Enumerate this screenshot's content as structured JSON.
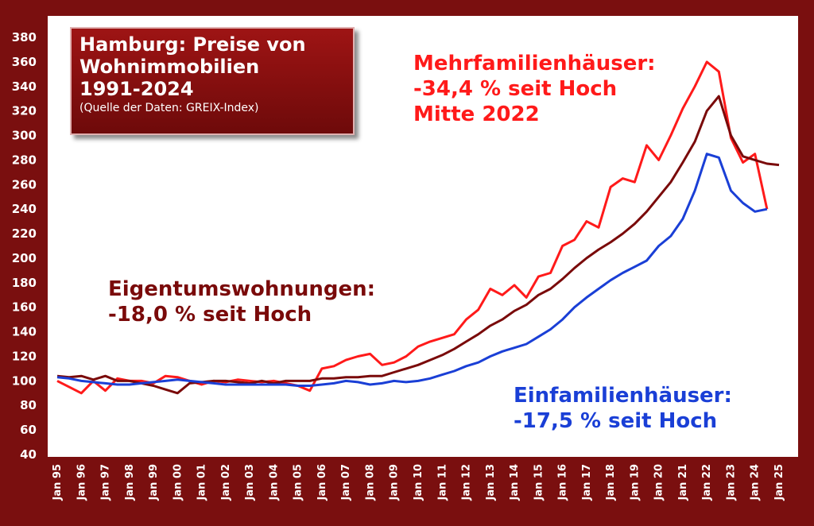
{
  "title": "Hamburg: Preise von\nWohnimmobilien\n1991-2024",
  "subtitle": "(Quelle der Daten: GREIX-Index)",
  "annotations": {
    "mehrfamilien": "Mehrfamilienhäuser:\n-34,4 % seit Hoch\nMitte 2022",
    "eigentum": "Eigentumswohnungen:\n-18,0 % seit Hoch",
    "einfamilien": "Einfamilienhäuser:\n-17,5 % seit Hoch"
  },
  "colors": {
    "background": "#7a0f0f",
    "mehrfamilien": "#ff1a1a",
    "eigentum": "#7a0a0a",
    "einfamilien": "#1a3fd6"
  },
  "chart_data": {
    "type": "line",
    "ylim": [
      40,
      380
    ],
    "yticks": [
      40,
      60,
      80,
      100,
      120,
      140,
      160,
      180,
      200,
      220,
      240,
      260,
      280,
      300,
      320,
      340,
      360,
      380
    ],
    "xlim": [
      1995,
      2025
    ],
    "xticks": [
      "Jan 95",
      "Jan 96",
      "Jan 97",
      "Jan 98",
      "Jan 99",
      "Jan 00",
      "Jan 01",
      "Jan 02",
      "Jan 03",
      "Jan 04",
      "Jan 05",
      "Jan 06",
      "Jan 07",
      "Jan 08",
      "Jan 09",
      "Jan 10",
      "Jan 11",
      "Jan 12",
      "Jan 13",
      "Jan 14",
      "Jan 15",
      "Jan 16",
      "Jan 17",
      "Jan 18",
      "Jan 19",
      "Jan 20",
      "Jan 21",
      "Jan 22",
      "Jan 23",
      "Jan 24",
      "Jan 25"
    ],
    "grid": false,
    "series": [
      {
        "name": "Mehrfamilienhäuser",
        "color": "#ff1a1a",
        "x": [
          1995.0,
          1995.5,
          1996.0,
          1996.5,
          1997.0,
          1997.5,
          1998.0,
          1998.5,
          1999.0,
          1999.5,
          2000.0,
          2000.5,
          2001.0,
          2001.5,
          2002.0,
          2002.5,
          2003.0,
          2003.5,
          2004.0,
          2004.5,
          2005.0,
          2005.5,
          2006.0,
          2006.5,
          2007.0,
          2007.5,
          2008.0,
          2008.5,
          2009.0,
          2009.5,
          2010.0,
          2010.5,
          2011.0,
          2011.5,
          2012.0,
          2012.5,
          2013.0,
          2013.5,
          2014.0,
          2014.5,
          2015.0,
          2015.5,
          2016.0,
          2016.5,
          2017.0,
          2017.5,
          2018.0,
          2018.5,
          2019.0,
          2019.5,
          2020.0,
          2020.5,
          2021.0,
          2021.5,
          2022.0,
          2022.5,
          2023.0,
          2023.5,
          2024.0,
          2024.5
        ],
        "values": [
          100,
          95,
          90,
          100,
          92,
          102,
          100,
          100,
          98,
          104,
          103,
          100,
          97,
          100,
          99,
          101,
          100,
          99,
          100,
          98,
          96,
          92,
          110,
          112,
          117,
          120,
          122,
          113,
          115,
          120,
          128,
          132,
          135,
          138,
          150,
          158,
          175,
          170,
          178,
          168,
          185,
          188,
          210,
          215,
          230,
          225,
          258,
          265,
          262,
          292,
          280,
          300,
          322,
          340,
          360,
          352,
          298,
          278,
          285,
          240
        ]
      },
      {
        "name": "Eigentumswohnungen",
        "color": "#7a0a0a",
        "x": [
          1995.0,
          1995.5,
          1996.0,
          1996.5,
          1997.0,
          1997.5,
          1998.0,
          1998.5,
          1999.0,
          1999.5,
          2000.0,
          2000.5,
          2001.0,
          2001.5,
          2002.0,
          2002.5,
          2003.0,
          2003.5,
          2004.0,
          2004.5,
          2005.0,
          2005.5,
          2006.0,
          2006.5,
          2007.0,
          2007.5,
          2008.0,
          2008.5,
          2009.0,
          2009.5,
          2010.0,
          2010.5,
          2011.0,
          2011.5,
          2012.0,
          2012.5,
          2013.0,
          2013.5,
          2014.0,
          2014.5,
          2015.0,
          2015.5,
          2016.0,
          2016.5,
          2017.0,
          2017.5,
          2018.0,
          2018.5,
          2019.0,
          2019.5,
          2020.0,
          2020.5,
          2021.0,
          2021.5,
          2022.0,
          2022.5,
          2023.0,
          2023.5,
          2024.0,
          2024.5,
          2025.0
        ],
        "values": [
          104,
          103,
          104,
          101,
          104,
          100,
          100,
          98,
          96,
          93,
          90,
          98,
          99,
          100,
          100,
          99,
          98,
          100,
          98,
          100,
          100,
          100,
          102,
          102,
          103,
          103,
          104,
          104,
          107,
          110,
          113,
          117,
          121,
          126,
          132,
          138,
          145,
          150,
          157,
          162,
          170,
          175,
          183,
          192,
          200,
          207,
          213,
          220,
          228,
          238,
          250,
          262,
          278,
          295,
          320,
          332,
          300,
          283,
          280,
          277,
          276
        ]
      },
      {
        "name": "Einfamilienhäuser",
        "color": "#1a3fd6",
        "x": [
          1995.0,
          1995.5,
          1996.0,
          1996.5,
          1997.0,
          1997.5,
          1998.0,
          1998.5,
          1999.0,
          1999.5,
          2000.0,
          2000.5,
          2001.0,
          2001.5,
          2002.0,
          2002.5,
          2003.0,
          2003.5,
          2004.0,
          2004.5,
          2005.0,
          2005.5,
          2006.0,
          2006.5,
          2007.0,
          2007.5,
          2008.0,
          2008.5,
          2009.0,
          2009.5,
          2010.0,
          2010.5,
          2011.0,
          2011.5,
          2012.0,
          2012.5,
          2013.0,
          2013.5,
          2014.0,
          2014.5,
          2015.0,
          2015.5,
          2016.0,
          2016.5,
          2017.0,
          2017.5,
          2018.0,
          2018.5,
          2019.0,
          2019.5,
          2020.0,
          2020.5,
          2021.0,
          2021.5,
          2022.0,
          2022.5,
          2023.0,
          2023.5,
          2024.0,
          2024.5
        ],
        "values": [
          103,
          102,
          100,
          99,
          98,
          97,
          97,
          98,
          99,
          100,
          101,
          100,
          99,
          98,
          97,
          97,
          97,
          97,
          97,
          97,
          96,
          96,
          97,
          98,
          100,
          99,
          97,
          98,
          100,
          99,
          100,
          102,
          105,
          108,
          112,
          115,
          120,
          124,
          127,
          130,
          136,
          142,
          150,
          160,
          168,
          175,
          182,
          188,
          193,
          198,
          210,
          218,
          232,
          255,
          285,
          282,
          255,
          245,
          238,
          240
        ]
      }
    ]
  }
}
